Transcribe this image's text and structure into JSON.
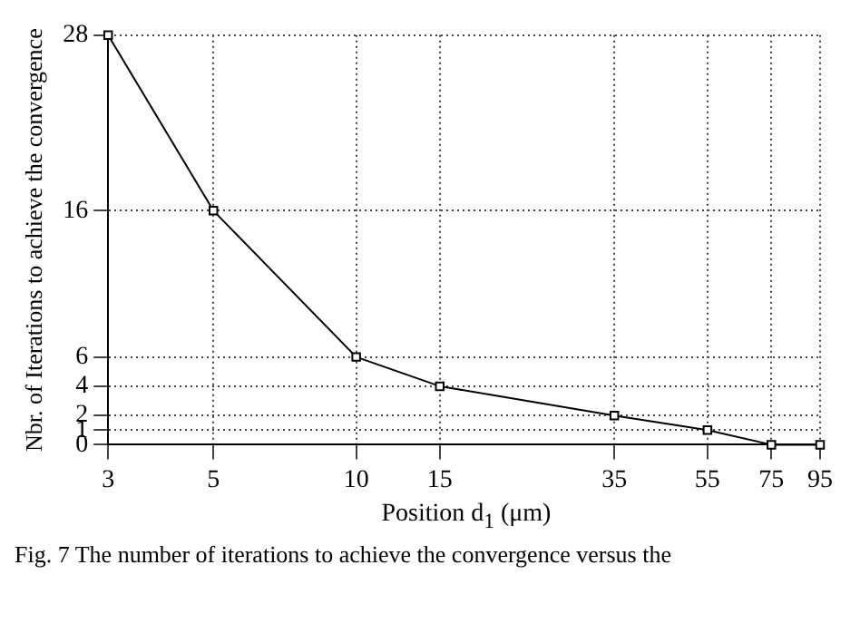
{
  "chart_data": {
    "type": "line",
    "xlabel": "Position d$_{1}$ (μm)",
    "ylabel": "Nbr. of Iterations to achieve the convergence",
    "annotations": [
      "Fig. 7 The number of iterations to achieve the convergence versus the"
    ],
    "x": [
      3,
      5,
      10,
      15,
      35,
      55,
      75,
      95
    ],
    "series": [
      {
        "color": "#000000",
        "values": [
          28,
          16,
          6,
          4,
          2,
          1,
          0,
          0
        ]
      }
    ],
    "log": "x",
    "xlim": [
      3,
      95
    ],
    "xticks": [
      3,
      5,
      10,
      15,
      35,
      55,
      75,
      95
    ],
    "ylim": [
      0,
      28
    ],
    "yticks": [
      0,
      1,
      2,
      4,
      6,
      16,
      28
    ],
    "grid": true,
    "marker": "square",
    "line_style": "solid",
    "legend": false
  }
}
